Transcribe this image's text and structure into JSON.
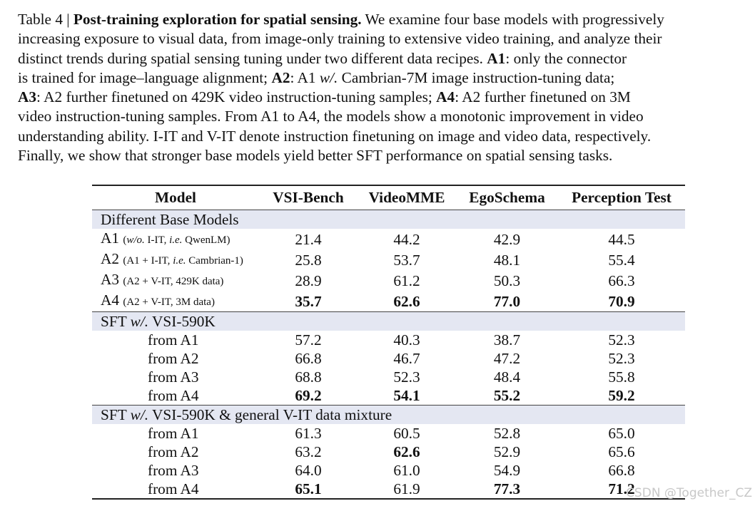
{
  "caption": {
    "lines": [
      [
        {
          "t": "Table 4 | "
        },
        {
          "t": "Post-training exploration for spatial sensing.",
          "b": true
        },
        {
          "t": " We examine four base models with progressively"
        }
      ],
      [
        {
          "t": "increasing exposure to visual data, from image-only training to extensive video training, and analyze their"
        }
      ],
      [
        {
          "t": "distinct trends during spatial sensing tuning under two different data recipes. "
        },
        {
          "t": "A1",
          "b": true
        },
        {
          "t": ": only the connector"
        }
      ],
      [
        {
          "t": "is trained for image–language alignment; "
        },
        {
          "t": "A2",
          "b": true
        },
        {
          "t": ": A1 "
        },
        {
          "t": "w/.",
          "i": true
        },
        {
          "t": " Cambrian-7M image instruction-tuning data;"
        }
      ],
      [
        {
          "t": "A3",
          "b": true
        },
        {
          "t": ": A2 further finetuned on 429K video instruction-tuning samples; "
        },
        {
          "t": "A4",
          "b": true
        },
        {
          "t": ": A2 further finetuned on 3M"
        }
      ],
      [
        {
          "t": "video instruction-tuning samples. From A1 to A4, the models show a monotonic improvement in video"
        }
      ],
      [
        {
          "t": "understanding ability. I-IT and V-IT denote instruction finetuning on image and video data, respectively."
        }
      ],
      [
        {
          "t": "Finally, we show that stronger base models yield better SFT performance on spatial sensing tasks."
        }
      ]
    ]
  },
  "table": {
    "headers": [
      "Model",
      "VSI-Bench",
      "VideoMME",
      "EgoSchema",
      "Perception Test"
    ],
    "groups": [
      {
        "title": [
          {
            "t": "Different Base Models"
          }
        ],
        "rows": [
          {
            "label": [
              {
                "t": "A1 "
              },
              {
                "t": "(",
                "s": true
              },
              {
                "t": "w/o.",
                "s": true,
                "i": true
              },
              {
                "t": " I-IT, ",
                "s": true
              },
              {
                "t": "i.e.",
                "s": true,
                "i": true
              },
              {
                "t": " QwenLM)",
                "s": true
              }
            ],
            "values": [
              "21.4",
              "44.2",
              "42.9",
              "44.5"
            ],
            "bold": [
              false,
              false,
              false,
              false
            ]
          },
          {
            "label": [
              {
                "t": "A2 "
              },
              {
                "t": "(A1 + I-IT, ",
                "s": true
              },
              {
                "t": "i.e.",
                "s": true,
                "i": true
              },
              {
                "t": " Cambrian-1)",
                "s": true
              }
            ],
            "values": [
              "25.8",
              "53.7",
              "48.1",
              "55.4"
            ],
            "bold": [
              false,
              false,
              false,
              false
            ]
          },
          {
            "label": [
              {
                "t": "A3 "
              },
              {
                "t": "(A2 + V-IT, 429K data)",
                "s": true
              }
            ],
            "values": [
              "28.9",
              "61.2",
              "50.3",
              "66.3"
            ],
            "bold": [
              false,
              false,
              false,
              false
            ]
          },
          {
            "label": [
              {
                "t": "A4 "
              },
              {
                "t": "(A2 + V-IT, 3M data)",
                "s": true
              }
            ],
            "values": [
              "35.7",
              "62.6",
              "77.0",
              "70.9"
            ],
            "bold": [
              true,
              true,
              true,
              true
            ]
          }
        ]
      },
      {
        "title": [
          {
            "t": "SFT "
          },
          {
            "t": "w/.",
            "i": true
          },
          {
            "t": " VSI-590K"
          }
        ],
        "rows": [
          {
            "sub": true,
            "label": [
              {
                "t": "from A1"
              }
            ],
            "values": [
              "57.2",
              "40.3",
              "38.7",
              "52.3"
            ],
            "bold": [
              false,
              false,
              false,
              false
            ]
          },
          {
            "sub": true,
            "label": [
              {
                "t": "from A2"
              }
            ],
            "values": [
              "66.8",
              "46.7",
              "47.2",
              "52.3"
            ],
            "bold": [
              false,
              false,
              false,
              false
            ]
          },
          {
            "sub": true,
            "label": [
              {
                "t": "from A3"
              }
            ],
            "values": [
              "68.8",
              "52.3",
              "48.4",
              "55.8"
            ],
            "bold": [
              false,
              false,
              false,
              false
            ]
          },
          {
            "sub": true,
            "label": [
              {
                "t": "from A4"
              }
            ],
            "values": [
              "69.2",
              "54.1",
              "55.2",
              "59.2"
            ],
            "bold": [
              true,
              true,
              true,
              true
            ]
          }
        ]
      },
      {
        "title": [
          {
            "t": "SFT "
          },
          {
            "t": "w/.",
            "i": true
          },
          {
            "t": " VSI-590K & general V-IT data mixture"
          }
        ],
        "rows": [
          {
            "sub": true,
            "label": [
              {
                "t": "from A1"
              }
            ],
            "values": [
              "61.3",
              "60.5",
              "52.8",
              "65.0"
            ],
            "bold": [
              false,
              false,
              false,
              false
            ]
          },
          {
            "sub": true,
            "label": [
              {
                "t": "from A2"
              }
            ],
            "values": [
              "63.2",
              "62.6",
              "52.9",
              "65.6"
            ],
            "bold": [
              false,
              true,
              false,
              false
            ]
          },
          {
            "sub": true,
            "label": [
              {
                "t": "from A3"
              }
            ],
            "values": [
              "64.0",
              "61.0",
              "54.9",
              "66.8"
            ],
            "bold": [
              false,
              false,
              false,
              false
            ]
          },
          {
            "sub": true,
            "label": [
              {
                "t": "from A4"
              }
            ],
            "values": [
              "65.1",
              "61.9",
              "77.3",
              "71.2"
            ],
            "bold": [
              true,
              false,
              true,
              true
            ]
          }
        ]
      }
    ]
  },
  "watermark": "CSDN @Together_CZ"
}
